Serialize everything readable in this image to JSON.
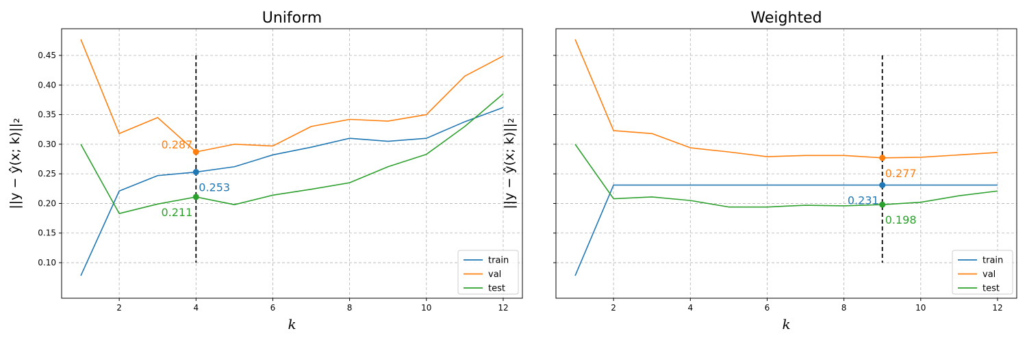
{
  "chart_data": [
    {
      "type": "line",
      "title": "Uniform",
      "xlabel": "k",
      "ylabel": "||y − ŷ(x; k)||₂",
      "xlim": [
        0.5,
        12.5
      ],
      "ylim": [
        0.04,
        0.495
      ],
      "xticks": [
        2,
        4,
        6,
        8,
        10,
        12
      ],
      "yticks": [
        0.1,
        0.15,
        0.2,
        0.25,
        0.3,
        0.35,
        0.4,
        0.45
      ],
      "ytick_labels": [
        "0.10",
        "0.15",
        "0.20",
        "0.25",
        "0.30",
        "0.35",
        "0.40",
        "0.45"
      ],
      "show_yticklabels": true,
      "grid": true,
      "legend_position": "lower-right",
      "x": [
        1,
        2,
        3,
        4,
        5,
        6,
        7,
        8,
        9,
        10,
        11,
        12
      ],
      "series": [
        {
          "name": "train",
          "color": "#1f77b4",
          "values": [
            0.078,
            0.221,
            0.247,
            0.253,
            0.262,
            0.282,
            0.295,
            0.31,
            0.305,
            0.31,
            0.338,
            0.362
          ]
        },
        {
          "name": "val",
          "color": "#ff7f0e",
          "values": [
            0.477,
            0.318,
            0.345,
            0.287,
            0.3,
            0.297,
            0.33,
            0.342,
            0.339,
            0.35,
            0.415,
            0.449
          ]
        },
        {
          "name": "test",
          "color": "#2ca02c",
          "values": [
            0.3,
            0.183,
            0.199,
            0.211,
            0.198,
            0.214,
            0.224,
            0.235,
            0.262,
            0.283,
            0.33,
            0.385
          ]
        }
      ],
      "vline": {
        "x": 4,
        "ymin": 0.1,
        "ymax": 0.45
      },
      "annotations": [
        {
          "text": "0.287",
          "x": 4,
          "y": 0.287,
          "color": "#ff7f0e",
          "side": "left"
        },
        {
          "text": "0.253",
          "x": 4,
          "y": 0.253,
          "color": "#1f77b4",
          "side": "right"
        },
        {
          "text": "0.211",
          "x": 4,
          "y": 0.211,
          "color": "#2ca02c",
          "side": "left"
        }
      ]
    },
    {
      "type": "line",
      "title": "Weighted",
      "xlabel": "k",
      "ylabel": "||y − ŷ(x; k)||₂",
      "xlim": [
        0.5,
        12.5
      ],
      "ylim": [
        0.04,
        0.495
      ],
      "xticks": [
        2,
        4,
        6,
        8,
        10,
        12
      ],
      "yticks": [
        0.1,
        0.15,
        0.2,
        0.25,
        0.3,
        0.35,
        0.4,
        0.45
      ],
      "ytick_labels": [
        "0.10",
        "0.15",
        "0.20",
        "0.25",
        "0.30",
        "0.35",
        "0.40",
        "0.45"
      ],
      "show_yticklabels": false,
      "grid": true,
      "legend_position": "lower-right",
      "x": [
        1,
        2,
        3,
        4,
        5,
        6,
        7,
        8,
        9,
        10,
        11,
        12
      ],
      "series": [
        {
          "name": "train",
          "color": "#1f77b4",
          "values": [
            0.078,
            0.231,
            0.231,
            0.231,
            0.231,
            0.231,
            0.231,
            0.231,
            0.231,
            0.231,
            0.231,
            0.231
          ]
        },
        {
          "name": "val",
          "color": "#ff7f0e",
          "values": [
            0.477,
            0.323,
            0.318,
            0.294,
            0.287,
            0.279,
            0.281,
            0.281,
            0.277,
            0.278,
            0.282,
            0.286
          ]
        },
        {
          "name": "test",
          "color": "#2ca02c",
          "values": [
            0.3,
            0.208,
            0.211,
            0.205,
            0.194,
            0.194,
            0.197,
            0.196,
            0.198,
            0.202,
            0.213,
            0.221
          ]
        }
      ],
      "vline": {
        "x": 9,
        "ymin": 0.1,
        "ymax": 0.45
      },
      "annotations": [
        {
          "text": "0.277",
          "x": 9,
          "y": 0.277,
          "color": "#ff7f0e",
          "side": "right-below"
        },
        {
          "text": "0.231",
          "x": 9,
          "y": 0.231,
          "color": "#1f77b4",
          "side": "left-below"
        },
        {
          "text": "0.198",
          "x": 9,
          "y": 0.198,
          "color": "#2ca02c",
          "side": "right-below"
        }
      ]
    }
  ]
}
